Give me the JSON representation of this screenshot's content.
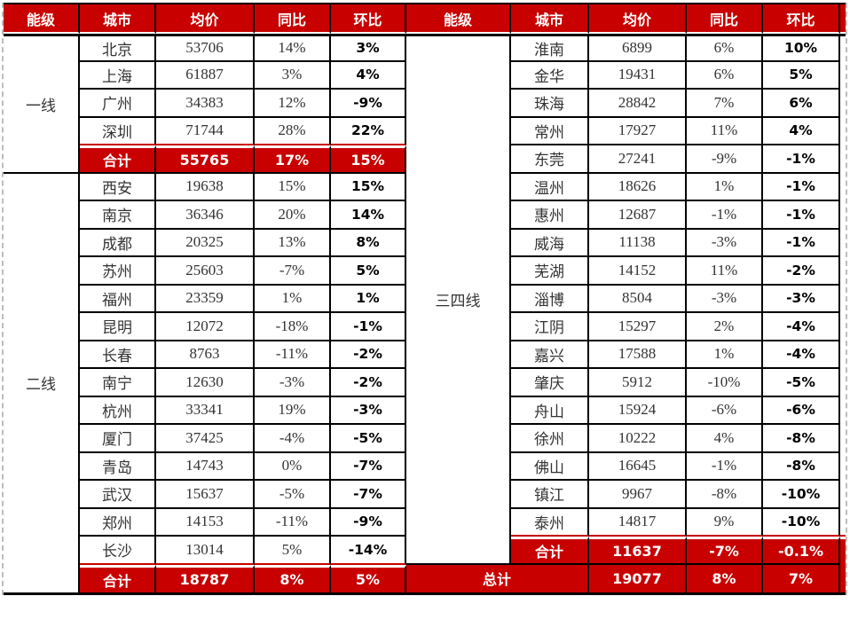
{
  "colors": {
    "header_bg": "#C80000",
    "summary_row_bg": "#C80000",
    "summary_text": "#FFFFFF",
    "grid_border": "#000000",
    "page_break_dash": "#BDBDBD",
    "body_text": "#333333",
    "mom_bold_text": "#000000"
  },
  "chart_data": [
    {
      "type": "table",
      "columns": [
        "能级",
        "城市",
        "均价",
        "同比",
        "环比"
      ],
      "groups": [
        {
          "tier": "一线",
          "rows": [
            [
              "北京",
              "53706",
              "14%",
              "3%"
            ],
            [
              "上海",
              "61887",
              "3%",
              "4%"
            ],
            [
              "广州",
              "34383",
              "12%",
              "-9%"
            ],
            [
              "深圳",
              "71744",
              "28%",
              "22%"
            ]
          ],
          "total": [
            "合计",
            "55765",
            "17%",
            "15%"
          ]
        },
        {
          "tier": "二线",
          "rows": [
            [
              "西安",
              "19638",
              "15%",
              "15%"
            ],
            [
              "南京",
              "36346",
              "20%",
              "14%"
            ],
            [
              "成都",
              "20325",
              "13%",
              "8%"
            ],
            [
              "苏州",
              "25603",
              "-7%",
              "5%"
            ],
            [
              "福州",
              "23359",
              "1%",
              "1%"
            ],
            [
              "昆明",
              "12072",
              "-18%",
              "-1%"
            ],
            [
              "长春",
              "8763",
              "-11%",
              "-2%"
            ],
            [
              "南宁",
              "12630",
              "-3%",
              "-2%"
            ],
            [
              "杭州",
              "33341",
              "19%",
              "-3%"
            ],
            [
              "厦门",
              "37425",
              "-4%",
              "-5%"
            ],
            [
              "青岛",
              "14743",
              "0%",
              "-7%"
            ],
            [
              "武汉",
              "15637",
              "-5%",
              "-7%"
            ],
            [
              "郑州",
              "14153",
              "-11%",
              "-9%"
            ],
            [
              "长沙",
              "13014",
              "5%",
              "-14%"
            ]
          ],
          "total": [
            "合计",
            "18787",
            "8%",
            "5%"
          ]
        }
      ]
    },
    {
      "type": "table",
      "columns": [
        "能级",
        "城市",
        "均价",
        "同比",
        "环比"
      ],
      "groups": [
        {
          "tier": "三四线",
          "rows": [
            [
              "淮南",
              "6899",
              "6%",
              "10%"
            ],
            [
              "金华",
              "19431",
              "6%",
              "5%"
            ],
            [
              "珠海",
              "28842",
              "7%",
              "6%"
            ],
            [
              "常州",
              "17927",
              "11%",
              "4%"
            ],
            [
              "东莞",
              "27241",
              "-9%",
              "-1%"
            ],
            [
              "温州",
              "18626",
              "1%",
              "-1%"
            ],
            [
              "惠州",
              "12687",
              "-1%",
              "-1%"
            ],
            [
              "威海",
              "11138",
              "-3%",
              "-1%"
            ],
            [
              "芜湖",
              "14152",
              "11%",
              "-2%"
            ],
            [
              "淄博",
              "8504",
              "-3%",
              "-3%"
            ],
            [
              "江阴",
              "15297",
              "2%",
              "-4%"
            ],
            [
              "嘉兴",
              "17588",
              "1%",
              "-4%"
            ],
            [
              "肇庆",
              "5912",
              "-10%",
              "-5%"
            ],
            [
              "舟山",
              "15924",
              "-6%",
              "-6%"
            ],
            [
              "徐州",
              "10222",
              "4%",
              "-8%"
            ],
            [
              "佛山",
              "16645",
              "-1%",
              "-8%"
            ],
            [
              "镇江",
              "9967",
              "-8%",
              "-10%"
            ],
            [
              "泰州",
              "14817",
              "9%",
              "-10%"
            ]
          ],
          "total": [
            "合计",
            "11637",
            "-7%",
            "-0.1%"
          ]
        }
      ],
      "grand_total": [
        "总计",
        "19077",
        "8%",
        "7%"
      ]
    }
  ]
}
